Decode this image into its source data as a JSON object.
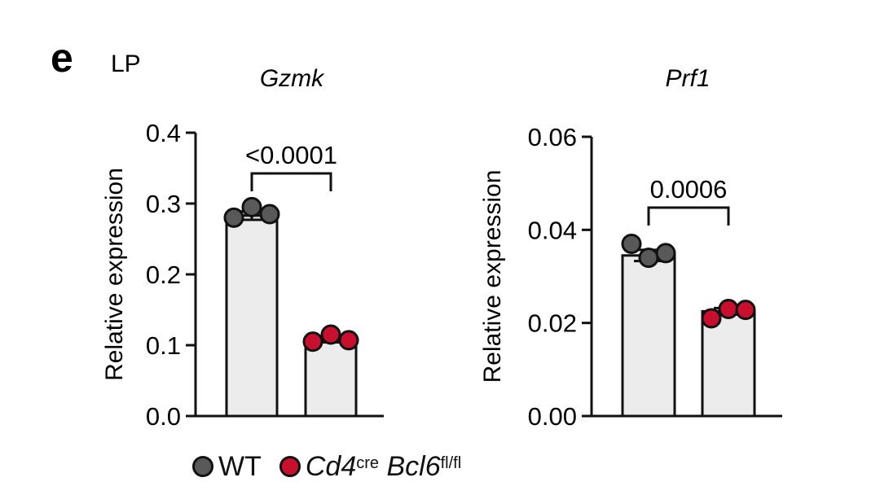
{
  "panel": {
    "letter": "e",
    "label": "LP"
  },
  "legend": {
    "wt": {
      "label": "WT",
      "color": "#595959"
    },
    "ko": {
      "label_main": "Cd4",
      "label_sup1": "cre",
      "label_gene": "Bcl6",
      "label_sup2": "fl/fl",
      "color": "#c8102e"
    }
  },
  "colors": {
    "bar_fill": "#ececec",
    "wt_dot": "#595959",
    "ko_dot": "#c8102e",
    "stroke": "#111111"
  },
  "chart_data": [
    {
      "type": "bar",
      "title": "Gzmk",
      "ylabel": "Relative expression",
      "ylim": [
        0,
        0.4
      ],
      "yticks": [
        "0.0",
        "0.1",
        "0.2",
        "0.3",
        "0.4"
      ],
      "categories": [
        "WT",
        "Cd4cre Bcl6fl/fl"
      ],
      "values": [
        0.283,
        0.108
      ],
      "errors": [
        0.006,
        0.004
      ],
      "points": [
        [
          0.28,
          0.295,
          0.285
        ],
        [
          0.105,
          0.115,
          0.107
        ]
      ],
      "comparison": {
        "label": "<0.0001"
      }
    },
    {
      "type": "bar",
      "title": "Prf1",
      "ylabel": "Relative expression",
      "ylim": [
        0,
        0.06
      ],
      "yticks": [
        "0.00",
        "0.02",
        "0.04",
        "0.06"
      ],
      "categories": [
        "WT",
        "Cd4cre Bcl6fl/fl"
      ],
      "values": [
        0.0345,
        0.0225
      ],
      "errors": [
        0.0012,
        0.0007
      ],
      "points": [
        [
          0.037,
          0.034,
          0.035
        ],
        [
          0.021,
          0.023,
          0.0228
        ]
      ],
      "comparison": {
        "label": "0.0006"
      }
    }
  ]
}
